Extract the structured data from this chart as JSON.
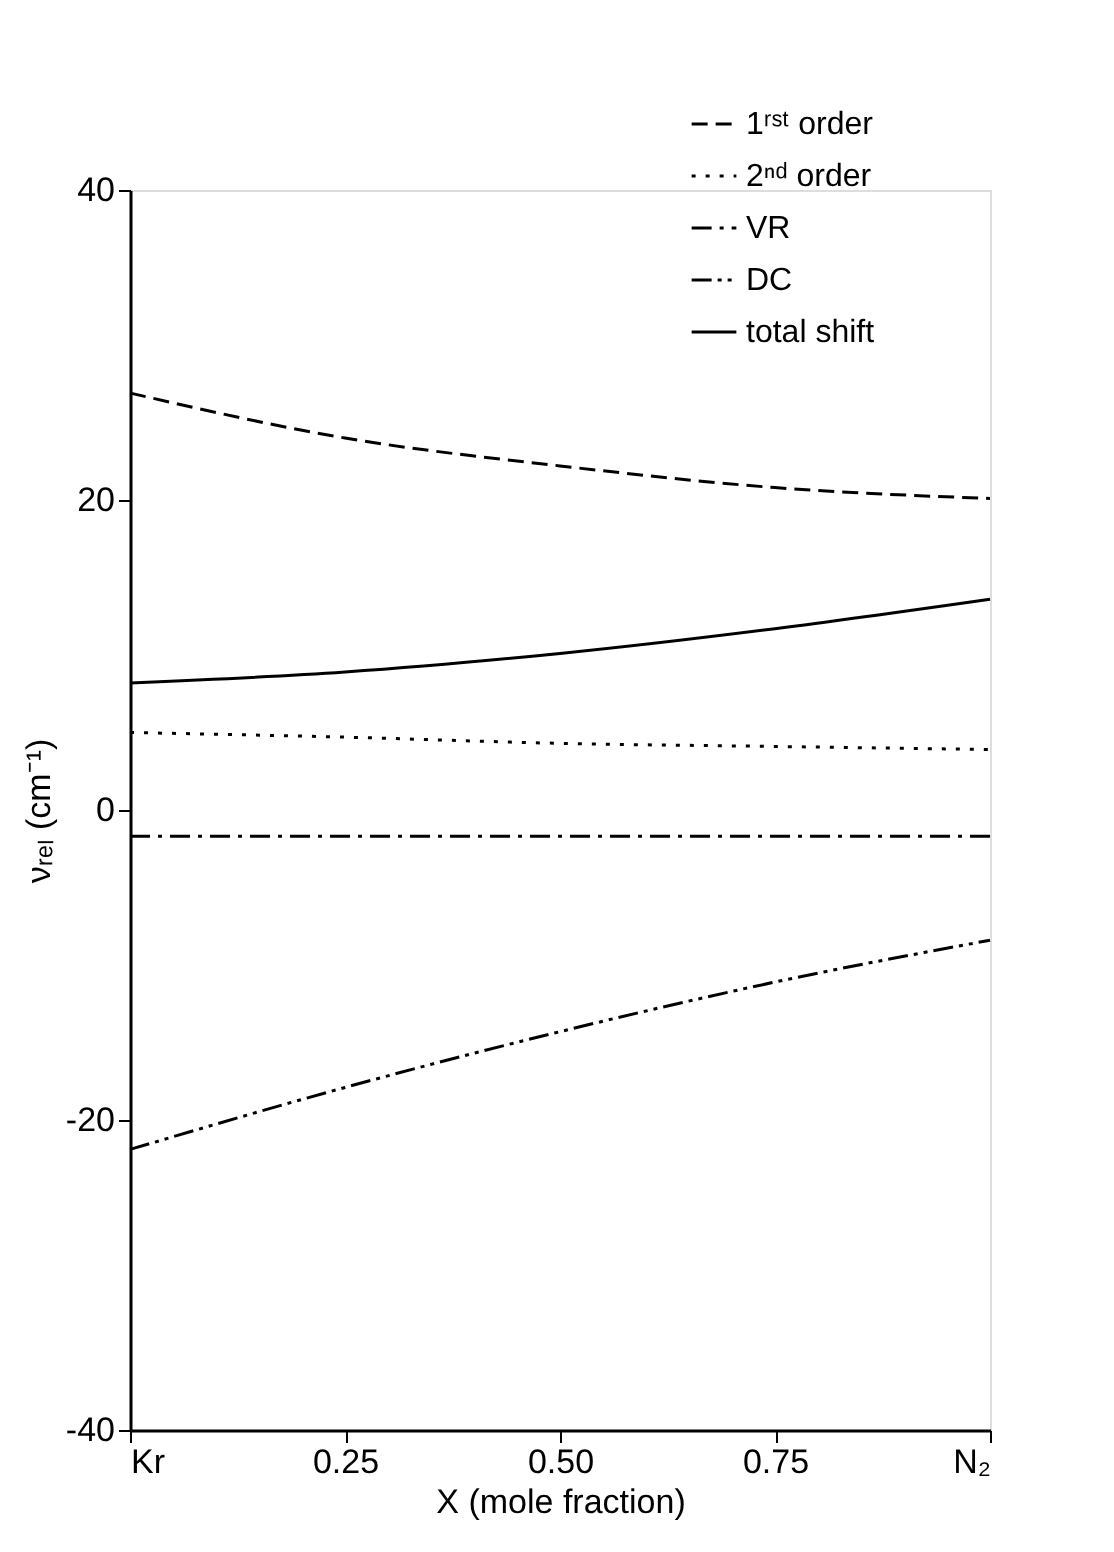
{
  "chart_data": {
    "type": "line",
    "xlabel": "X (mole fraction)",
    "ylabel": "νᵣₑₗ (cm⁻¹)",
    "x": [
      0,
      0.25,
      0.5,
      0.75,
      1
    ],
    "xlim": [
      0,
      1
    ],
    "xticks": [
      {
        "value": 0,
        "label": "Kr"
      },
      0.25,
      {
        "value": 0.5,
        "label": "0.50"
      },
      0.75,
      {
        "value": 1,
        "label": "N₂"
      }
    ],
    "ylim": [
      -40,
      40
    ],
    "yticks": [
      -40,
      -20,
      0,
      20,
      40
    ],
    "legend": "top right",
    "grid": false,
    "series": [
      {
        "name": "1ʳˢᵗ order",
        "color": "#000000",
        "line_style": "dashed",
        "values": [
          26.9,
          24.0,
          22.2,
          20.8,
          20.1
        ]
      },
      {
        "name": "2ⁿᵈ order",
        "color": "#000000",
        "line_style": "dotted",
        "values": [
          5.0,
          4.7,
          4.3,
          4.1,
          3.9
        ]
      },
      {
        "name": "VR",
        "color": "#000000",
        "line_style": "dashdot",
        "values": [
          -1.7,
          -1.7,
          -1.7,
          -1.7,
          -1.7
        ]
      },
      {
        "name": "DC",
        "color": "#000000",
        "line_style": "dashdotdot",
        "values": [
          -21.9,
          -17.9,
          -14.3,
          -11.1,
          -8.4
        ]
      },
      {
        "name": "total shift",
        "color": "#000000",
        "line_style": "solid",
        "values": [
          8.2,
          8.9,
          10.1,
          11.7,
          13.6
        ]
      }
    ]
  }
}
